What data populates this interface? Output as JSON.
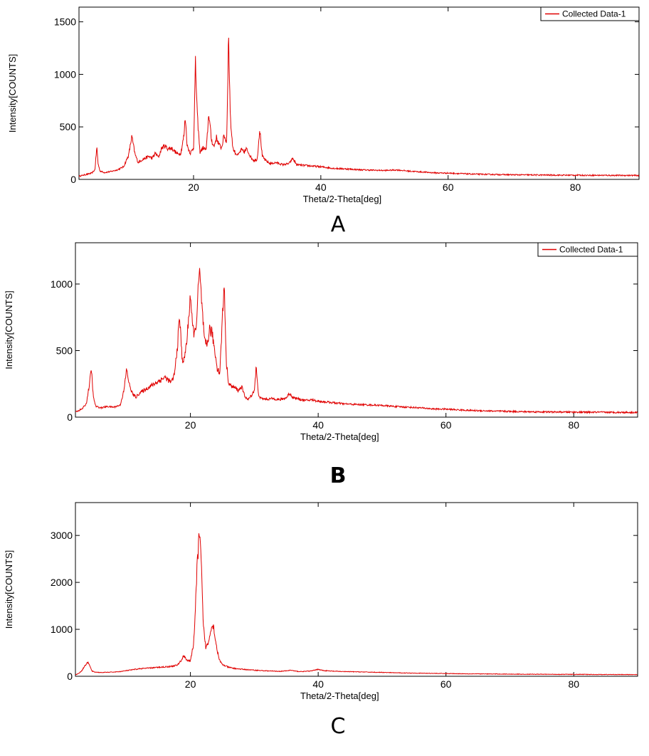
{
  "series_color": "#e00000",
  "chart_data": [
    {
      "type": "line",
      "panel_label": "A",
      "xlabel": "Theta/2-Theta[deg]",
      "ylabel": "Intensity[COUNTS]",
      "xlim": [
        2,
        90
      ],
      "ylim": [
        0,
        1640
      ],
      "xticks": [
        20,
        40,
        60,
        80
      ],
      "yticks": [
        0,
        500,
        1000,
        1500
      ],
      "legend": "top-right",
      "grid": false,
      "series": [
        {
          "name": "Collected Data-1",
          "x": [
            2,
            3,
            4,
            4.5,
            4.8,
            5,
            5.3,
            6,
            7,
            8,
            9,
            9.8,
            10.3,
            10.8,
            11.3,
            12,
            13,
            13.5,
            14,
            14.5,
            15,
            15.5,
            16,
            16.5,
            17,
            17.5,
            18,
            18.5,
            18.7,
            19,
            19.5,
            20,
            20.3,
            20.6,
            21,
            21.5,
            22,
            22.4,
            22.8,
            23.2,
            23.6,
            24,
            24.4,
            24.8,
            25.2,
            25.5,
            25.8,
            26.2,
            26.6,
            27,
            27.5,
            28,
            28.3,
            28.7,
            29,
            29.5,
            30,
            30.4,
            30.8,
            31.3,
            32,
            33,
            34,
            35,
            35.6,
            36.2,
            37,
            38,
            39,
            40,
            42,
            44,
            46,
            48,
            50,
            52,
            54,
            56,
            58,
            60,
            62,
            64,
            66,
            68,
            70,
            72,
            74,
            76,
            78,
            80,
            82,
            84,
            86,
            88,
            90
          ],
          "y": [
            30,
            45,
            60,
            90,
            310,
            150,
            80,
            65,
            75,
            90,
            120,
            230,
            410,
            240,
            160,
            190,
            220,
            200,
            250,
            210,
            300,
            320,
            290,
            300,
            270,
            240,
            250,
            420,
            600,
            320,
            250,
            300,
            1100,
            600,
            260,
            300,
            280,
            630,
            380,
            310,
            400,
            330,
            300,
            420,
            350,
            1370,
            560,
            290,
            250,
            230,
            280,
            260,
            290,
            250,
            210,
            180,
            190,
            480,
            220,
            180,
            150,
            160,
            140,
            150,
            200,
            140,
            135,
            130,
            125,
            120,
            105,
            100,
            92,
            88,
            85,
            90,
            78,
            70,
            62,
            60,
            55,
            50,
            48,
            46,
            44,
            43,
            42,
            41,
            40,
            40,
            39,
            39,
            38,
            38,
            37
          ]
        }
      ]
    },
    {
      "type": "line",
      "panel_label": "B",
      "xlabel": "Theta/2-Theta[deg]",
      "ylabel": "Intensity[COUNTS]",
      "xlim": [
        2,
        90
      ],
      "ylim": [
        0,
        1310
      ],
      "xticks": [
        20,
        40,
        60,
        80
      ],
      "yticks": [
        0,
        500,
        1000
      ],
      "legend": "top-right",
      "grid": false,
      "series": [
        {
          "name": "Collected Data-1",
          "x": [
            2,
            3,
            3.7,
            4.2,
            4.5,
            4.8,
            5.2,
            6,
            7,
            8,
            9,
            9.6,
            10,
            10.5,
            11,
            11.5,
            12,
            13,
            14,
            15,
            16,
            17,
            17.5,
            18,
            18.3,
            18.7,
            19,
            19.5,
            20,
            20.3,
            20.7,
            21,
            21.4,
            21.8,
            22.2,
            22.6,
            23,
            23.4,
            23.8,
            24.2,
            24.6,
            25,
            25.3,
            25.6,
            26,
            26.5,
            27,
            27.5,
            28,
            28.5,
            29,
            29.5,
            30,
            30.3,
            30.6,
            31,
            32,
            33,
            34,
            35,
            35.5,
            36,
            37,
            38,
            39,
            40,
            42,
            44,
            46,
            48,
            50,
            52,
            54,
            56,
            58,
            60,
            62,
            64,
            66,
            68,
            70,
            72,
            74,
            76,
            78,
            80,
            82,
            84,
            86,
            88,
            90
          ],
          "y": [
            40,
            60,
            100,
            250,
            365,
            150,
            80,
            70,
            80,
            75,
            90,
            200,
            360,
            230,
            170,
            150,
            180,
            210,
            240,
            270,
            300,
            260,
            320,
            550,
            760,
            440,
            420,
            600,
            930,
            680,
            620,
            760,
            1100,
            840,
            560,
            540,
            660,
            630,
            500,
            370,
            330,
            740,
            1010,
            420,
            250,
            230,
            220,
            200,
            230,
            160,
            130,
            160,
            200,
            380,
            180,
            140,
            135,
            140,
            130,
            145,
            180,
            150,
            135,
            125,
            130,
            120,
            110,
            100,
            95,
            92,
            88,
            80,
            75,
            70,
            62,
            60,
            55,
            50,
            48,
            45,
            43,
            41,
            40,
            39,
            38,
            38,
            37,
            37,
            36,
            36,
            35
          ]
        }
      ]
    },
    {
      "type": "line",
      "panel_label": "C",
      "xlabel": "Theta/2-Theta[deg]",
      "ylabel": "Intensity[COUNTS]",
      "xlim": [
        2,
        90
      ],
      "ylim": [
        0,
        3700
      ],
      "xticks": [
        20,
        40,
        60,
        80
      ],
      "yticks": [
        0,
        1000,
        2000,
        3000
      ],
      "legend": "none",
      "grid": false,
      "series": [
        {
          "name": "",
          "x": [
            2,
            2.5,
            3,
            3.5,
            4,
            4.3,
            4.6,
            5,
            6,
            7,
            8,
            9,
            10,
            11,
            12,
            13,
            14,
            15,
            16,
            17,
            18,
            18.5,
            19,
            19.5,
            20,
            20.5,
            20.8,
            21.1,
            21.4,
            21.7,
            22,
            22.4,
            22.8,
            23.2,
            23.6,
            24,
            24.5,
            25,
            26,
            27,
            28,
            30,
            32,
            34,
            35,
            35.7,
            36.4,
            37,
            38,
            39,
            40,
            40.5,
            41,
            42,
            44,
            46,
            48,
            50,
            52,
            54,
            56,
            58,
            60,
            62,
            64,
            66,
            68,
            70,
            72,
            74,
            76,
            78,
            80,
            82,
            84,
            86,
            88,
            90
          ],
          "y": [
            30,
            60,
            120,
            230,
            300,
            200,
            110,
            90,
            80,
            85,
            90,
            100,
            120,
            140,
            160,
            170,
            180,
            190,
            200,
            210,
            240,
            330,
            440,
            340,
            320,
            700,
            1500,
            2500,
            3050,
            2400,
            1100,
            620,
            700,
            1030,
            1080,
            700,
            350,
            250,
            190,
            165,
            150,
            130,
            115,
            105,
            115,
            130,
            110,
            100,
            105,
            115,
            150,
            130,
            120,
            110,
            100,
            95,
            88,
            82,
            75,
            70,
            65,
            62,
            58,
            55,
            52,
            50,
            48,
            46,
            44,
            43,
            42,
            41,
            40,
            39,
            38,
            37,
            36,
            35
          ]
        }
      ]
    }
  ]
}
